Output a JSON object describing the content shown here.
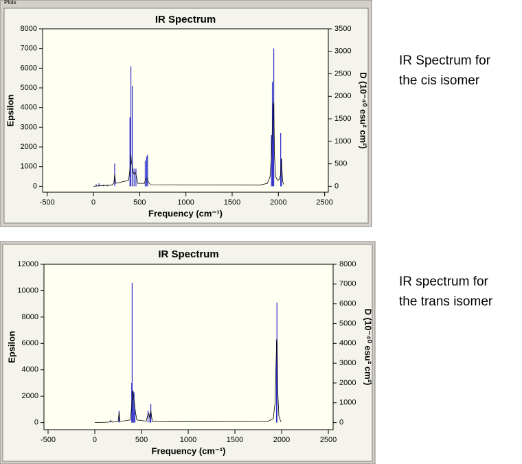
{
  "window_label": "Plots",
  "chart_data": [
    {
      "type": "line",
      "title": "IR Spectrum",
      "x_label": "Frequency (cm⁻¹)",
      "y_label": "Epsilon",
      "y2_label": "D (10⁻⁴⁰ esu² cm²)",
      "xlim": [
        -550,
        2540
      ],
      "xticks": [
        -500,
        0,
        500,
        1000,
        1500,
        2000,
        2500
      ],
      "ylim": [
        -300,
        8000
      ],
      "yticks": [
        0,
        1000,
        2000,
        3000,
        4000,
        5000,
        6000,
        7000,
        8000
      ],
      "y2lim": [
        -131,
        3500
      ],
      "y2ticks": [
        0,
        500,
        1000,
        1500,
        2000,
        2500,
        3000,
        3500
      ],
      "grid": false,
      "series": [
        {
          "style": "stick",
          "color": "#2a2ac8",
          "x": [
            30,
            60,
            110,
            150,
            230,
            395,
            405,
            420,
            440,
            460,
            560,
            575,
            585,
            1925,
            1935,
            1945,
            1950,
            2025,
            2035
          ],
          "values": [
            100,
            150,
            80,
            60,
            1150,
            3500,
            6100,
            5100,
            900,
            900,
            1300,
            1500,
            1600,
            2600,
            5300,
            4200,
            7000,
            2700,
            1400
          ]
        },
        {
          "style": "line",
          "color": "#000000",
          "x": [
            0,
            100,
            200,
            220,
            230,
            240,
            380,
            390,
            400,
            405,
            410,
            420,
            430,
            440,
            455,
            465,
            480,
            550,
            565,
            575,
            585,
            595,
            620,
            1800,
            1880,
            1910,
            1925,
            1935,
            1942,
            1950,
            1958,
            1970,
            1990,
            2010,
            2025,
            2030,
            2038,
            2045,
            2055
          ],
          "values": [
            0,
            40,
            60,
            150,
            600,
            150,
            300,
            700,
            1200,
            1600,
            1300,
            1000,
            700,
            600,
            700,
            500,
            150,
            150,
            350,
            400,
            400,
            200,
            80,
            60,
            150,
            500,
            1500,
            3000,
            3800,
            4300,
            1600,
            500,
            300,
            350,
            600,
            1400,
            900,
            300,
            100
          ]
        }
      ]
    },
    {
      "type": "line",
      "title": "IR Spectrum",
      "x_label": "Frequency (cm⁻¹)",
      "y_label": "Epsilon",
      "y2_label": "D (10⁻⁴⁰ esu² cm²)",
      "xlim": [
        -544,
        2551
      ],
      "xticks": [
        -500,
        0,
        500,
        1000,
        1500,
        2000,
        2500
      ],
      "ylim": [
        -540,
        12000
      ],
      "yticks": [
        0,
        2000,
        4000,
        6000,
        8000,
        10000,
        12000
      ],
      "y2lim": [
        -360,
        8000
      ],
      "y2ticks": [
        0,
        1000,
        2000,
        3000,
        4000,
        5000,
        6000,
        7000,
        8000
      ],
      "grid": false,
      "series": [
        {
          "style": "stick",
          "color": "#2a2ac8",
          "x": [
            170,
            260,
            395,
            400,
            410,
            420,
            430,
            570,
            590,
            600,
            1945,
            1950
          ],
          "values": [
            150,
            900,
            3000,
            10600,
            2400,
            2300,
            1000,
            900,
            700,
            1400,
            6300,
            9100
          ]
        },
        {
          "style": "line",
          "color": "#000000",
          "x": [
            0,
            150,
            170,
            190,
            250,
            260,
            270,
            380,
            395,
            405,
            415,
            425,
            435,
            450,
            550,
            565,
            575,
            590,
            600,
            615,
            700,
            1850,
            1910,
            1930,
            1940,
            1947,
            1952,
            1958,
            1970,
            1990,
            2000
          ],
          "values": [
            0,
            30,
            150,
            30,
            80,
            800,
            80,
            200,
            1200,
            2400,
            2000,
            1400,
            800,
            200,
            100,
            500,
            700,
            300,
            900,
            100,
            60,
            80,
            300,
            1500,
            4500,
            6300,
            6000,
            2500,
            500,
            100,
            50
          ]
        }
      ]
    }
  ],
  "captions": [
    [
      "IR Spectrum for",
      "the cis isomer"
    ],
    [
      "IR spectrum for",
      "the trans isomer"
    ]
  ]
}
